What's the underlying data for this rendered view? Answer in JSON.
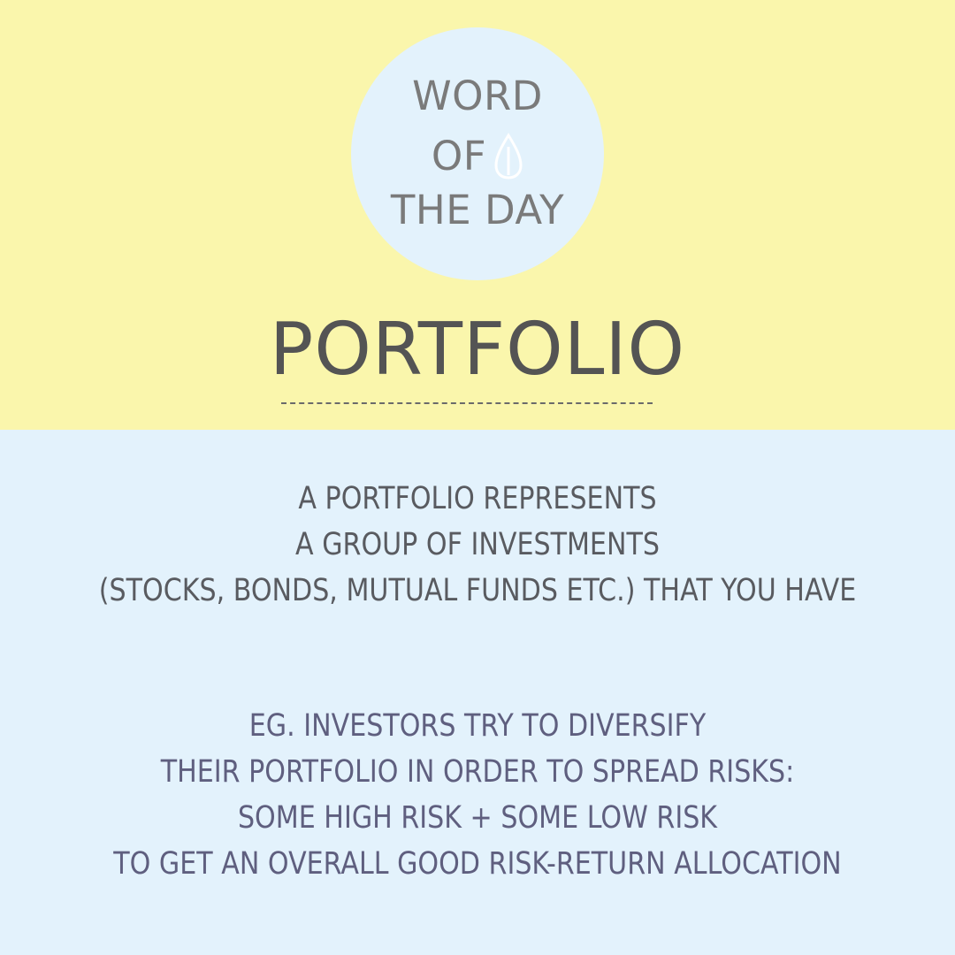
{
  "colors": {
    "top_background": "#faf6ac",
    "bottom_background": "#e3f2fc",
    "badge_circle": "#e3f2fc",
    "badge_text": "#7a7a7a",
    "title_text": "#545454",
    "definition_text": "#595b60",
    "example_text": "#5f5f7f"
  },
  "badge": {
    "line1": "WORD",
    "line2": "OF",
    "line3": "THE DAY",
    "icon": "leaf-drop-icon"
  },
  "word": "PORTFOLIO",
  "definition": {
    "lines": [
      "A PORTFOLIO REPRESENTS",
      "A GROUP OF INVESTMENTS",
      "(STOCKS, BONDS, MUTUAL FUNDS ETC.) THAT YOU HAVE"
    ]
  },
  "example": {
    "lines": [
      "EG. INVESTORS TRY TO DIVERSIFY",
      "THEIR PORTFOLIO IN ORDER TO SPREAD RISKS:",
      "SOME HIGH RISK + SOME LOW RISK",
      "TO GET AN OVERALL GOOD RISK-RETURN ALLOCATION"
    ]
  }
}
